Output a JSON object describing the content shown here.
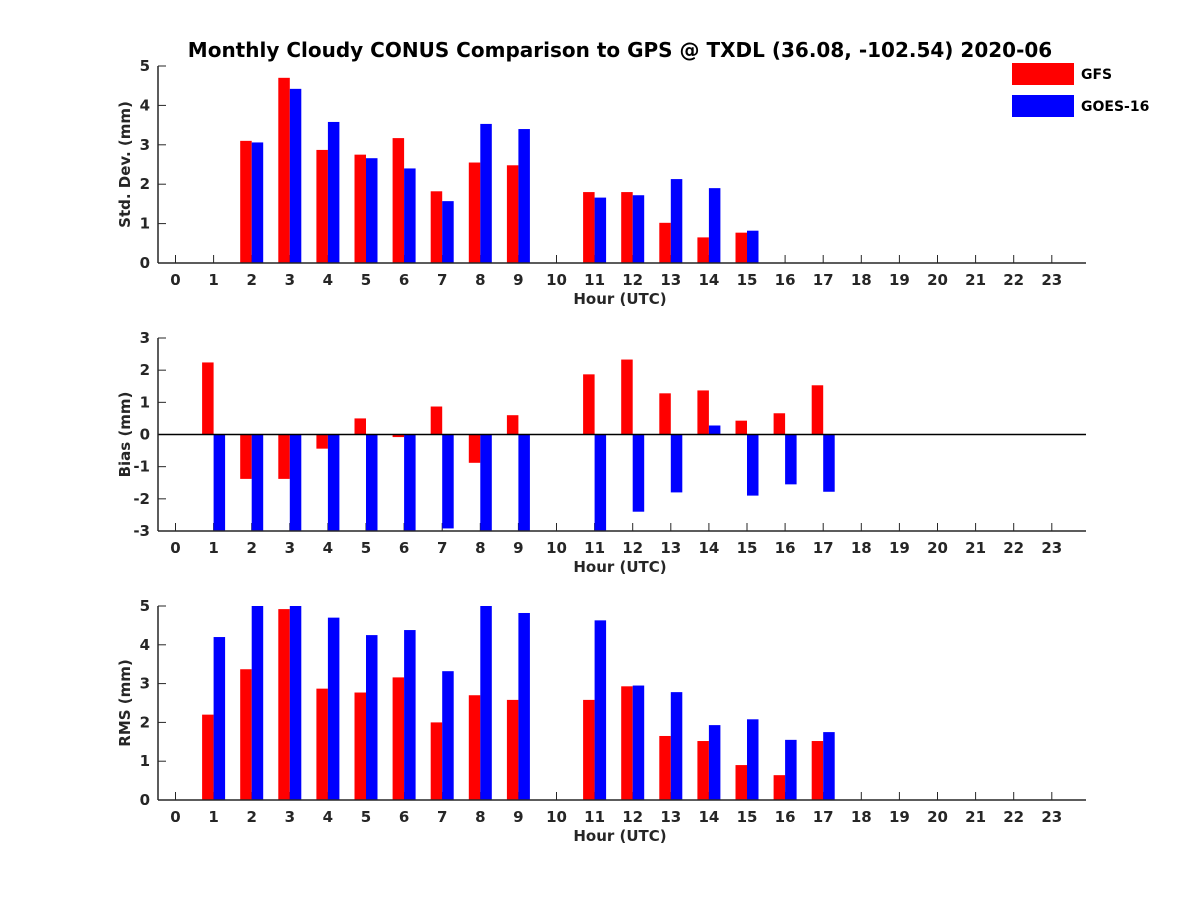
{
  "title": "Monthly Cloudy CONUS Comparison to GPS @ TXDL (36.08, -102.54) 2020-06",
  "legend": [
    {
      "label": "GFS",
      "color": "#ff0000"
    },
    {
      "label": "GOES-16",
      "color": "#0000ff"
    }
  ],
  "chart_data": [
    {
      "type": "bar",
      "name": "std-dev",
      "xlabel": "Hour (UTC)",
      "ylabel": "Std. Dev. (mm)",
      "ylim": [
        0,
        5
      ],
      "yticks": [
        0,
        1,
        2,
        3,
        4,
        5
      ],
      "categories": [
        0,
        1,
        2,
        3,
        4,
        5,
        6,
        7,
        8,
        9,
        10,
        11,
        12,
        13,
        14,
        15,
        16,
        17,
        18,
        19,
        20,
        21,
        22,
        23
      ],
      "series": [
        {
          "name": "GFS",
          "values": [
            null,
            null,
            3.1,
            4.7,
            2.87,
            2.75,
            3.17,
            1.82,
            2.55,
            2.48,
            null,
            1.8,
            1.8,
            1.02,
            0.65,
            0.77,
            null,
            null,
            null,
            null,
            null,
            null,
            null,
            null
          ]
        },
        {
          "name": "GOES-16",
          "values": [
            null,
            null,
            3.06,
            4.42,
            3.58,
            2.66,
            2.4,
            1.57,
            3.53,
            3.4,
            null,
            1.66,
            1.72,
            2.13,
            1.9,
            0.82,
            null,
            null,
            null,
            null,
            null,
            null,
            null,
            null
          ]
        }
      ]
    },
    {
      "type": "bar",
      "name": "bias",
      "xlabel": "Hour (UTC)",
      "ylabel": "Bias (mm)",
      "ylim": [
        -3,
        3
      ],
      "yticks": [
        -3,
        -2,
        -1,
        0,
        1,
        2,
        3
      ],
      "zero_line": true,
      "categories": [
        0,
        1,
        2,
        3,
        4,
        5,
        6,
        7,
        8,
        9,
        10,
        11,
        12,
        13,
        14,
        15,
        16,
        17,
        18,
        19,
        20,
        21,
        22,
        23
      ],
      "series": [
        {
          "name": "GFS",
          "values": [
            null,
            2.24,
            -1.38,
            -1.38,
            -0.44,
            0.5,
            -0.08,
            0.87,
            -0.88,
            0.6,
            null,
            1.87,
            2.33,
            1.28,
            1.37,
            0.43,
            0.66,
            1.53,
            null,
            null,
            null,
            null,
            null,
            null
          ]
        },
        {
          "name": "GOES-16",
          "values": [
            null,
            -3.0,
            -3.0,
            -3.0,
            -3.0,
            -3.0,
            -3.0,
            -2.92,
            -3.0,
            -3.0,
            null,
            -3.0,
            -2.4,
            -1.8,
            0.28,
            -1.9,
            -1.55,
            -1.78,
            null,
            null,
            null,
            null,
            null,
            null
          ]
        }
      ]
    },
    {
      "type": "bar",
      "name": "rms",
      "xlabel": "Hour (UTC)",
      "ylabel": "RMS (mm)",
      "ylim": [
        0,
        5
      ],
      "yticks": [
        0,
        1,
        2,
        3,
        4,
        5
      ],
      "categories": [
        0,
        1,
        2,
        3,
        4,
        5,
        6,
        7,
        8,
        9,
        10,
        11,
        12,
        13,
        14,
        15,
        16,
        17,
        18,
        19,
        20,
        21,
        22,
        23
      ],
      "series": [
        {
          "name": "GFS",
          "values": [
            null,
            2.2,
            3.37,
            4.92,
            2.87,
            2.77,
            3.16,
            2.0,
            2.7,
            2.58,
            null,
            2.58,
            2.93,
            1.65,
            1.52,
            0.9,
            0.64,
            1.52,
            null,
            null,
            null,
            null,
            null,
            null
          ]
        },
        {
          "name": "GOES-16",
          "values": [
            null,
            4.2,
            5.0,
            5.0,
            4.7,
            4.25,
            4.38,
            3.32,
            5.0,
            4.82,
            null,
            4.63,
            2.95,
            2.78,
            1.93,
            2.08,
            1.55,
            1.75,
            null,
            null,
            null,
            null,
            null,
            null
          ]
        }
      ]
    }
  ]
}
